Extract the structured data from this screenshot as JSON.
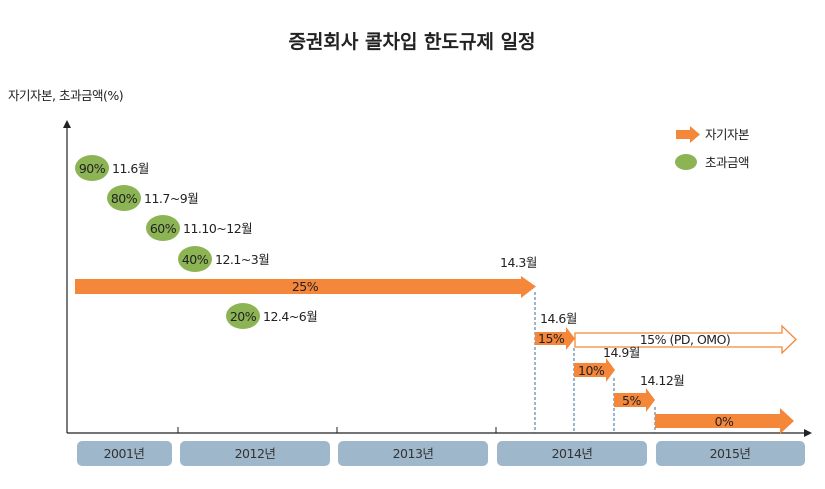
{
  "title": "증권회사 콜차입 한도규제 일정",
  "y_axis_label": "자기자본, 초과금액(%)",
  "legend": {
    "equity": "자기자본",
    "excess": "초과금액"
  },
  "colors": {
    "orange": "#f5873a",
    "green": "#8db454",
    "year_box": "#9fb7cb"
  },
  "years": [
    "2001년",
    "2012년",
    "2013년",
    "2014년",
    "2015년"
  ],
  "excess_steps": [
    {
      "pct": "90%",
      "period": "11.6월"
    },
    {
      "pct": "80%",
      "period": "11.7~9월"
    },
    {
      "pct": "60%",
      "period": "11.10~12월"
    },
    {
      "pct": "40%",
      "period": "12.1~3월"
    },
    {
      "pct": "20%",
      "period": "12.4~6월"
    }
  ],
  "equity_steps": [
    {
      "pct": "25%",
      "until": "14.3월"
    },
    {
      "pct": "15%",
      "until": "14.6월"
    },
    {
      "pct": "10%",
      "until": "14.9월"
    },
    {
      "pct": "5%",
      "until": "14.12월"
    },
    {
      "pct": "0%",
      "until": ""
    }
  ],
  "pd_omo_label": "15% (PD, OMO)"
}
